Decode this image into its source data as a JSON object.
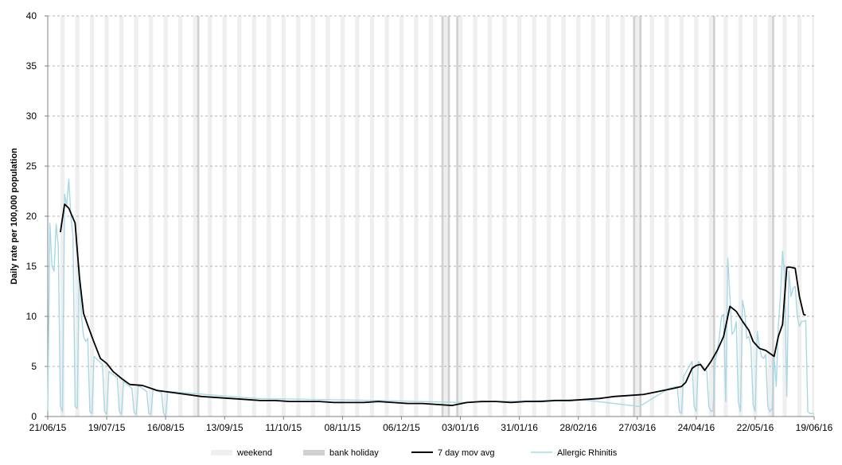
{
  "chart_data": {
    "type": "line",
    "title": "",
    "xlabel": "",
    "ylabel": "Daily rate per 100,000 population",
    "ylim": [
      0,
      40
    ],
    "y_ticks": [
      0,
      5,
      10,
      15,
      20,
      25,
      30,
      35,
      40
    ],
    "x_range": [
      "2015-06-21",
      "2016-06-19"
    ],
    "x_tick_labels": [
      "21/06/15",
      "19/07/15",
      "16/08/15",
      "13/09/15",
      "11/10/15",
      "08/11/15",
      "06/12/15",
      "03/01/16",
      "31/01/16",
      "28/02/16",
      "27/03/16",
      "24/04/16",
      "22/05/16",
      "19/06/16"
    ],
    "grid": "horizontal dashed",
    "legend_position": "bottom",
    "legend": [
      {
        "label": "weekend",
        "type": "band",
        "color": "#efefef"
      },
      {
        "label": "bank holiday",
        "type": "band",
        "color": "#d0d0d0"
      },
      {
        "label": "7 day mov avg",
        "type": "line",
        "color": "#000000"
      },
      {
        "label": "Allergic Rhinitis",
        "type": "line",
        "color": "#a8d8e4"
      }
    ],
    "bank_holidays": [
      "2015-08-31",
      "2015-12-25",
      "2015-12-28",
      "2016-01-01",
      "2016-03-25",
      "2016-03-28",
      "2016-05-02",
      "2016-05-30"
    ],
    "series": [
      {
        "name": "Allergic Rhinitis",
        "color": "#a8d8e4",
        "x": [
          "2015-06-21",
          "2015-06-22",
          "2015-06-23",
          "2015-06-24",
          "2015-06-25",
          "2015-06-26",
          "2015-06-27",
          "2015-06-28",
          "2015-06-29",
          "2015-06-30",
          "2015-07-01",
          "2015-07-02",
          "2015-07-03",
          "2015-07-04",
          "2015-07-05",
          "2015-07-06",
          "2015-07-07",
          "2015-07-08",
          "2015-07-09",
          "2015-07-10",
          "2015-07-11",
          "2015-07-12",
          "2015-07-13",
          "2015-07-17",
          "2015-07-18",
          "2015-07-19",
          "2015-07-20",
          "2015-07-24",
          "2015-07-25",
          "2015-07-26",
          "2015-07-27",
          "2015-07-31",
          "2015-08-01",
          "2015-08-02",
          "2015-08-03",
          "2015-08-07",
          "2015-08-08",
          "2015-08-09",
          "2015-08-10",
          "2015-08-14",
          "2015-08-15",
          "2015-08-16",
          "2015-08-17",
          "2015-09-28",
          "2015-10-26",
          "2015-11-23",
          "2016-01-04",
          "2016-02-29",
          "2016-03-28",
          "2016-04-11",
          "2016-04-15",
          "2016-04-16",
          "2016-04-17",
          "2016-04-18",
          "2016-04-22",
          "2016-04-23",
          "2016-04-24",
          "2016-04-25",
          "2016-04-29",
          "2016-04-30",
          "2016-05-01",
          "2016-05-02",
          "2016-05-03",
          "2016-05-04",
          "2016-05-05",
          "2016-05-06",
          "2016-05-07",
          "2016-05-08",
          "2016-05-09",
          "2016-05-10",
          "2016-05-11",
          "2016-05-12",
          "2016-05-13",
          "2016-05-14",
          "2016-05-15",
          "2016-05-16",
          "2016-05-17",
          "2016-05-18",
          "2016-05-19",
          "2016-05-20",
          "2016-05-21",
          "2016-05-22",
          "2016-05-23",
          "2016-05-24",
          "2016-05-25",
          "2016-05-26",
          "2016-05-27",
          "2016-05-28",
          "2016-05-29",
          "2016-05-30",
          "2016-05-31",
          "2016-06-01",
          "2016-06-02",
          "2016-06-03",
          "2016-06-04",
          "2016-06-05",
          "2016-06-06",
          "2016-06-07",
          "2016-06-08",
          "2016-06-09",
          "2016-06-10",
          "2016-06-11",
          "2016-06-12",
          "2016-06-13",
          "2016-06-14",
          "2016-06-15",
          "2016-06-16",
          "2016-06-17",
          "2016-06-18",
          "2016-06-19"
        ],
        "values": [
          0.5,
          19.3,
          15.0,
          14.5,
          19.2,
          17.0,
          1.0,
          0.5,
          22.2,
          21.0,
          23.7,
          20.0,
          18.0,
          1.0,
          0.8,
          15.0,
          10.0,
          8.0,
          7.5,
          7.8,
          0.5,
          0.3,
          6.0,
          5.2,
          0.5,
          0.2,
          4.5,
          3.9,
          0.5,
          0.2,
          3.5,
          2.8,
          0.4,
          0.2,
          3.1,
          2.5,
          0.3,
          0.2,
          2.7,
          2.4,
          0.3,
          0.1,
          2.5,
          1.8,
          1.7,
          1.6,
          1.4,
          1.7,
          1.0,
          2.8,
          3.0,
          0.5,
          0.3,
          4.0,
          5.5,
          1.0,
          0.5,
          5.5,
          4.5,
          1.0,
          0.5,
          0.6,
          5.5,
          6.5,
          8.0,
          10.0,
          10.2,
          1.5,
          15.8,
          12.0,
          8.2,
          8.5,
          9.5,
          1.5,
          0.5,
          11.6,
          10.5,
          7.8,
          8.0,
          7.0,
          1.2,
          0.5,
          8.5,
          7.0,
          6.0,
          5.8,
          6.2,
          1.0,
          0.5,
          0.8,
          6.0,
          3.0,
          9.0,
          12.0,
          16.5,
          14.0,
          2.0,
          14.5,
          12.0,
          12.8,
          13.0,
          10.0,
          9.0,
          9.5,
          9.5,
          9.6,
          0.5,
          0.3,
          0.3,
          0.3
        ]
      },
      {
        "name": "7 day mov avg",
        "color": "#000000",
        "x": [
          "2015-06-27",
          "2015-06-29",
          "2015-07-01",
          "2015-07-04",
          "2015-07-06",
          "2015-07-08",
          "2015-07-10",
          "2015-07-13",
          "2015-07-16",
          "2015-07-19",
          "2015-07-22",
          "2015-07-26",
          "2015-07-30",
          "2015-08-05",
          "2015-08-12",
          "2015-08-19",
          "2015-08-26",
          "2015-09-02",
          "2015-09-09",
          "2015-09-16",
          "2015-09-23",
          "2015-09-30",
          "2015-10-07",
          "2015-10-14",
          "2015-10-21",
          "2015-10-28",
          "2015-11-04",
          "2015-11-11",
          "2015-11-18",
          "2015-11-25",
          "2015-12-02",
          "2015-12-09",
          "2015-12-16",
          "2015-12-23",
          "2015-12-30",
          "2016-01-06",
          "2016-01-13",
          "2016-01-20",
          "2016-01-27",
          "2016-02-03",
          "2016-02-10",
          "2016-02-17",
          "2016-02-24",
          "2016-03-02",
          "2016-03-09",
          "2016-03-16",
          "2016-03-23",
          "2016-03-30",
          "2016-04-06",
          "2016-04-13",
          "2016-04-17",
          "2016-04-19",
          "2016-04-22",
          "2016-04-24",
          "2016-04-26",
          "2016-04-28",
          "2016-05-01",
          "2016-05-04",
          "2016-05-07",
          "2016-05-08",
          "2016-05-10",
          "2016-05-13",
          "2016-05-16",
          "2016-05-19",
          "2016-05-21",
          "2016-05-24",
          "2016-05-27",
          "2016-05-29",
          "2016-05-31",
          "2016-06-02",
          "2016-06-04",
          "2016-06-06",
          "2016-06-08",
          "2016-06-10",
          "2016-06-12",
          "2016-06-14",
          "2016-06-15"
        ],
        "values": [
          18.4,
          21.2,
          20.8,
          19.3,
          14.0,
          10.3,
          9.1,
          7.4,
          5.8,
          5.3,
          4.5,
          3.8,
          3.2,
          3.1,
          2.6,
          2.4,
          2.2,
          2.0,
          1.9,
          1.8,
          1.7,
          1.6,
          1.6,
          1.5,
          1.5,
          1.5,
          1.4,
          1.4,
          1.4,
          1.5,
          1.4,
          1.3,
          1.3,
          1.2,
          1.1,
          1.4,
          1.5,
          1.5,
          1.4,
          1.5,
          1.5,
          1.6,
          1.6,
          1.7,
          1.8,
          2.0,
          2.1,
          2.2,
          2.5,
          2.8,
          3.0,
          3.4,
          4.8,
          5.1,
          5.2,
          4.6,
          5.5,
          6.6,
          8.0,
          9.0,
          11.0,
          10.5,
          9.5,
          8.6,
          7.5,
          6.8,
          6.6,
          6.3,
          6.0,
          8.0,
          9.2,
          14.9,
          14.9,
          14.8,
          12.0,
          10.2,
          10.1
        ]
      }
    ]
  }
}
